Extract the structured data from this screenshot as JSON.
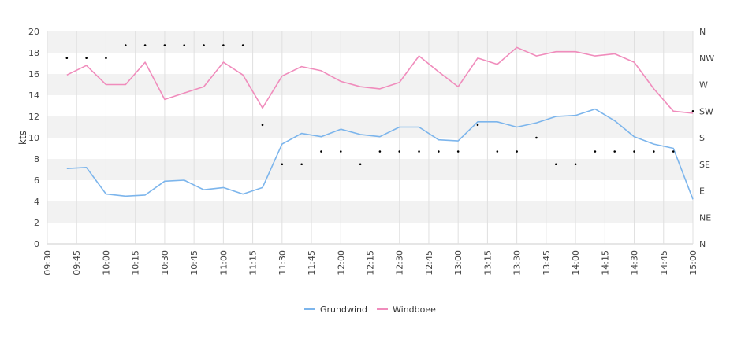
{
  "chart_data": {
    "type": "line",
    "ylabel": "kts",
    "ylim": [
      0,
      20
    ],
    "y_ticks": [
      "0",
      "2",
      "4",
      "6",
      "8",
      "10",
      "12",
      "14",
      "16",
      "18",
      "20"
    ],
    "x_ticks": [
      "09:30",
      "09:45",
      "10:00",
      "10:15",
      "10:30",
      "10:45",
      "11:00",
      "11:15",
      "11:30",
      "11:45",
      "12:00",
      "12:15",
      "12:30",
      "12:45",
      "13:00",
      "13:15",
      "13:30",
      "13:45",
      "14:00",
      "14:15",
      "14:30",
      "14:45",
      "15:00"
    ],
    "direction_ticks": [
      "N",
      "NE",
      "E",
      "SE",
      "S",
      "SW",
      "W",
      "NW",
      "N"
    ],
    "grid": true,
    "legend_position": "bottom",
    "x": [
      "09:40",
      "09:50",
      "10:00",
      "10:10",
      "10:20",
      "10:30",
      "10:40",
      "10:50",
      "11:00",
      "11:10",
      "11:20",
      "11:30",
      "11:40",
      "11:50",
      "12:00",
      "12:10",
      "12:20",
      "12:30",
      "12:40",
      "12:50",
      "13:00",
      "13:10",
      "13:20",
      "13:30",
      "13:40",
      "13:50",
      "14:00",
      "14:10",
      "14:20",
      "14:30",
      "14:40",
      "14:50",
      "15:00"
    ],
    "series": [
      {
        "name": "Grundwind",
        "color": "#7cb5ec",
        "values": [
          7.1,
          7.2,
          4.7,
          4.5,
          4.6,
          5.9,
          6.0,
          5.1,
          5.3,
          4.7,
          5.3,
          9.4,
          10.4,
          10.1,
          10.8,
          10.3,
          10.1,
          11.0,
          11.0,
          9.8,
          9.7,
          11.5,
          11.5,
          11.0,
          11.4,
          12.0,
          12.1,
          12.7,
          11.6,
          10.1,
          9.4,
          9.0,
          4.2
        ]
      },
      {
        "name": "Windboee",
        "color": "#f08cbc",
        "values": [
          15.9,
          16.8,
          15.0,
          15.0,
          17.1,
          13.6,
          14.2,
          14.8,
          17.1,
          15.9,
          12.8,
          15.8,
          16.7,
          16.3,
          15.3,
          14.8,
          14.6,
          15.2,
          17.7,
          16.2,
          14.8,
          17.5,
          16.9,
          18.5,
          17.7,
          18.1,
          18.1,
          17.7,
          17.9,
          17.1,
          14.6,
          12.5,
          12.3
        ]
      }
    ],
    "direction": {
      "x": [
        "09:40",
        "09:50",
        "10:00",
        "10:10",
        "10:20",
        "10:30",
        "10:40",
        "10:50",
        "11:00",
        "11:10",
        "11:20",
        "11:30",
        "11:40",
        "11:50",
        "12:00",
        "12:10",
        "12:20",
        "12:30",
        "12:40",
        "12:50",
        "13:00",
        "13:10",
        "13:20",
        "13:30",
        "13:40",
        "13:50",
        "14:00",
        "14:10",
        "14:20",
        "14:30",
        "14:40",
        "14:50",
        "15:00"
      ],
      "values": [
        17.5,
        17.5,
        17.5,
        18.7,
        18.7,
        18.7,
        18.7,
        18.7,
        18.7,
        18.7,
        11.2,
        7.5,
        7.5,
        8.7,
        8.7,
        7.5,
        8.7,
        8.7,
        8.7,
        8.7,
        8.7,
        11.2,
        8.7,
        8.7,
        10.0,
        7.5,
        7.5,
        8.7,
        8.7,
        8.7,
        8.7,
        8.7,
        12.5
      ]
    }
  }
}
